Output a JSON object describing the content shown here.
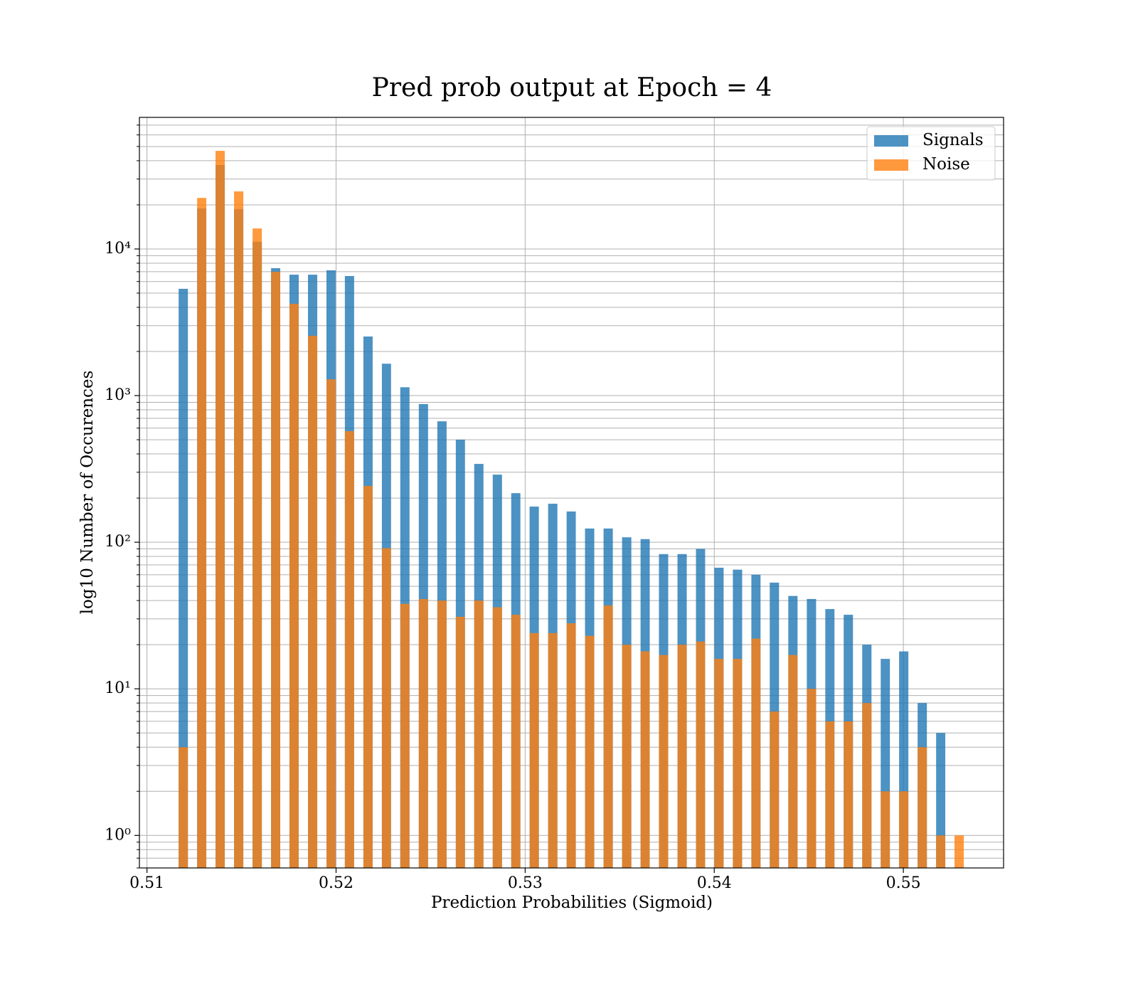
{
  "chart_data": {
    "type": "histogram",
    "title": "Pred prob output at Epoch = 4",
    "xlabel": "Prediction Probabilities (Sigmoid)",
    "ylabel": "log10 Number of Occurences",
    "bins": [
      0.51143,
      0.51241,
      0.51338,
      0.51436,
      0.51534,
      0.51632,
      0.51729,
      0.51827,
      0.51925,
      0.52022,
      0.5212,
      0.52218,
      0.52315,
      0.52413,
      0.52511,
      0.52609,
      0.52706,
      0.52804,
      0.52902,
      0.52999,
      0.53097,
      0.53195,
      0.53292,
      0.5339,
      0.53488,
      0.53586,
      0.53683,
      0.53781,
      0.53879,
      0.53976,
      0.54074,
      0.54172,
      0.54269,
      0.54367,
      0.54465,
      0.54563,
      0.5466,
      0.54758,
      0.54856,
      0.54953,
      0.55051,
      0.55149,
      0.55246,
      0.55344
    ],
    "series": [
      {
        "name": "Signals",
        "color": "#1f77b4",
        "values": [
          5350,
          18900,
          37400,
          18700,
          11200,
          7400,
          6680,
          6680,
          7150,
          6540,
          2530,
          1650,
          1140,
          875,
          668,
          500,
          342,
          289,
          216,
          175,
          183,
          162,
          124,
          124,
          108,
          105,
          83,
          83,
          90,
          67,
          65,
          60,
          53,
          43,
          41,
          35,
          32,
          20,
          16,
          18,
          8,
          5,
          0
        ]
      },
      {
        "name": "Noise",
        "color": "#ff7f0e",
        "values": [
          4,
          22300,
          46700,
          24700,
          13800,
          7000,
          4230,
          2560,
          1290,
          572,
          242,
          91,
          38,
          41,
          40,
          31,
          40,
          36,
          32,
          24,
          24,
          28,
          23,
          37,
          20,
          18,
          17,
          20,
          21,
          16,
          16,
          22,
          7,
          17,
          10,
          6,
          6,
          8,
          2,
          2,
          4,
          1,
          1
        ]
      }
    ],
    "opacity": 0.8,
    "rwidth": 0.5,
    "xlim": [
      0.5096,
      0.5553
    ],
    "xticks": [
      0.51,
      0.52,
      0.53,
      0.54,
      0.55
    ],
    "ylim": [
      0.6,
      79000
    ],
    "yscale": "log",
    "yticks": [
      {
        "value": 1,
        "label": "10⁰"
      },
      {
        "value": 10,
        "label": "10¹"
      },
      {
        "value": 100,
        "label": "10²"
      },
      {
        "value": 1000,
        "label": "10³"
      },
      {
        "value": 10000,
        "label": "10⁴"
      }
    ],
    "yminorticks": [
      0.6,
      0.7,
      0.8,
      0.9,
      2,
      3,
      4,
      5,
      6,
      7,
      8,
      9,
      20,
      30,
      40,
      50,
      60,
      70,
      80,
      90,
      200,
      300,
      400,
      500,
      600,
      700,
      800,
      900,
      2000,
      3000,
      4000,
      5000,
      6000,
      7000,
      8000,
      9000,
      20000,
      30000,
      40000,
      50000,
      60000,
      70000
    ],
    "grid": true,
    "legend": "upper right"
  }
}
